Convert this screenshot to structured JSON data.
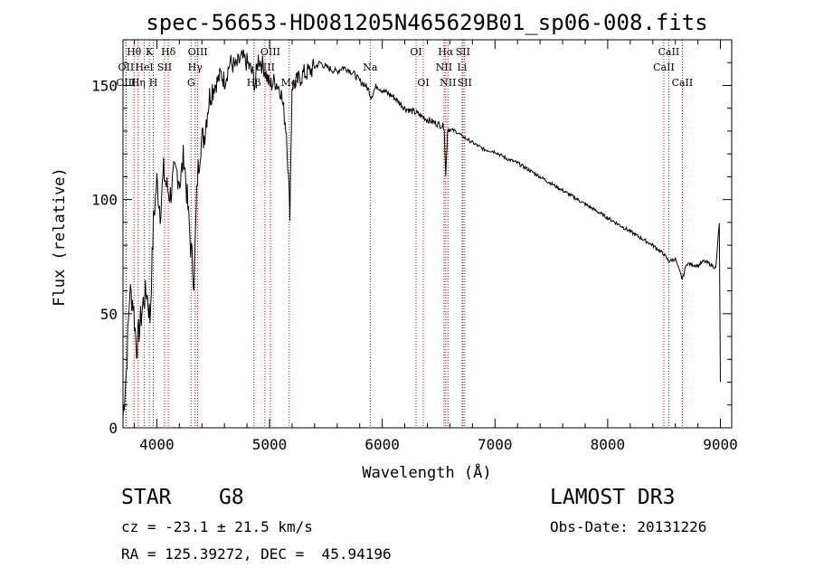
{
  "chart_data": {
    "type": "line",
    "title": "spec-56653-HD081205N465629B01_sp06-008.fits",
    "xlabel": "Wavelength (Å)",
    "ylabel": "Flux (relative)",
    "xlim": [
      3700,
      9100
    ],
    "ylim": [
      0,
      170
    ],
    "xticks": [
      4000,
      5000,
      6000,
      7000,
      8000,
      9000
    ],
    "yticks": [
      0,
      50,
      100,
      150
    ],
    "series": [
      {
        "name": "spectrum",
        "x": [
          3700,
          3730,
          3760,
          3790,
          3820,
          3850,
          3880,
          3910,
          3940,
          3970,
          4000,
          4030,
          4060,
          4090,
          4120,
          4150,
          4180,
          4210,
          4240,
          4270,
          4300,
          4330,
          4360,
          4390,
          4420,
          4450,
          4480,
          4510,
          4540,
          4570,
          4600,
          4650,
          4700,
          4750,
          4800,
          4850,
          4870,
          4900,
          4950,
          5000,
          5050,
          5100,
          5150,
          5180,
          5200,
          5250,
          5300,
          5350,
          5400,
          5450,
          5500,
          5550,
          5600,
          5650,
          5700,
          5750,
          5800,
          5850,
          5880,
          5900,
          5950,
          6000,
          6100,
          6200,
          6300,
          6400,
          6500,
          6550,
          6563,
          6580,
          6650,
          6700,
          6800,
          6900,
          7000,
          7100,
          7200,
          7300,
          7400,
          7500,
          7600,
          7700,
          7800,
          7900,
          8000,
          8100,
          8200,
          8300,
          8400,
          8500,
          8542,
          8600,
          8662,
          8700,
          8800,
          8850,
          8900,
          8960,
          8990,
          9000
        ],
        "y": [
          5,
          25,
          60,
          55,
          35,
          45,
          55,
          60,
          48,
          90,
          108,
          95,
          112,
          105,
          102,
          110,
          112,
          108,
          120,
          100,
          80,
          65,
          110,
          125,
          128,
          140,
          148,
          150,
          152,
          155,
          152,
          160,
          158,
          162,
          160,
          155,
          150,
          162,
          158,
          150,
          152,
          148,
          130,
          95,
          150,
          152,
          155,
          156,
          158,
          160,
          158,
          157,
          156,
          158,
          157,
          155,
          152,
          150,
          148,
          145,
          150,
          148,
          145,
          140,
          138,
          135,
          133,
          132,
          110,
          131,
          130,
          128,
          125,
          122,
          121,
          118,
          116,
          113,
          110,
          107,
          104,
          101,
          98,
          95,
          92,
          89,
          86,
          83,
          80,
          76,
          73,
          74,
          65,
          72,
          71,
          73,
          72,
          70,
          90,
          20
        ]
      }
    ],
    "lines": [
      {
        "name": "Hθ",
        "x": 3798,
        "pos": "top",
        "row": 0
      },
      {
        "name": "OII",
        "x": 3727,
        "pos": "top",
        "row": 1
      },
      {
        "name": "OIII",
        "x": 3727,
        "pos": "top",
        "row": 2
      },
      {
        "name": "Hη",
        "x": 3835,
        "pos": "top",
        "row": 2
      },
      {
        "name": "HeI",
        "x": 3889,
        "pos": "top",
        "row": 1
      },
      {
        "name": "K",
        "x": 3934,
        "pos": "top",
        "row": 0
      },
      {
        "name": "H",
        "x": 3969,
        "pos": "top",
        "row": 2
      },
      {
        "name": "SII",
        "x": 4069,
        "pos": "top",
        "row": 1
      },
      {
        "name": "Hδ",
        "x": 4102,
        "pos": "top",
        "row": 0
      },
      {
        "name": "OIII",
        "x": 4363,
        "pos": "top",
        "row": 0
      },
      {
        "name": "Hγ",
        "x": 4340,
        "pos": "top",
        "row": 1
      },
      {
        "name": "G",
        "x": 4304,
        "pos": "top",
        "row": 2
      },
      {
        "name": "OIII",
        "x": 5007,
        "pos": "top",
        "row": 0
      },
      {
        "name": "OIII",
        "x": 4959,
        "pos": "top",
        "row": 1
      },
      {
        "name": "Hβ",
        "x": 4861,
        "pos": "top",
        "row": 2
      },
      {
        "name": "Mg",
        "x": 5175,
        "pos": "top",
        "row": 2
      },
      {
        "name": "Na",
        "x": 5893,
        "pos": "top",
        "row": 1
      },
      {
        "name": "OI",
        "x": 6300,
        "pos": "top",
        "row": 0
      },
      {
        "name": "OI",
        "x": 6364,
        "pos": "top",
        "row": 2
      },
      {
        "name": "Hα",
        "x": 6563,
        "pos": "top",
        "row": 0
      },
      {
        "name": "SII",
        "x": 6716,
        "pos": "top",
        "row": 0
      },
      {
        "name": "NII",
        "x": 6548,
        "pos": "top",
        "row": 1
      },
      {
        "name": "Li",
        "x": 6708,
        "pos": "top",
        "row": 1
      },
      {
        "name": "NII",
        "x": 6583,
        "pos": "top",
        "row": 2
      },
      {
        "name": "SII",
        "x": 6731,
        "pos": "top",
        "row": 2
      },
      {
        "name": "CaII",
        "x": 8542,
        "pos": "top",
        "row": 0
      },
      {
        "name": "CaII",
        "x": 8498,
        "pos": "top",
        "row": 1
      },
      {
        "name": "CaII",
        "x": 8662,
        "pos": "top",
        "row": 2
      }
    ]
  },
  "info": {
    "object_class": "STAR",
    "subclass": "G8",
    "survey": "LAMOST DR3",
    "redshift": "cz = -23.1 ± 21.5 km/s",
    "obs_date": "Obs-Date: 20131226",
    "coords": "RA = 125.39272, DEC =  45.94196"
  },
  "colors": {
    "line": "#000000",
    "marker_lines": "#c00000",
    "axes": "#000000",
    "background": "#ffffff"
  }
}
